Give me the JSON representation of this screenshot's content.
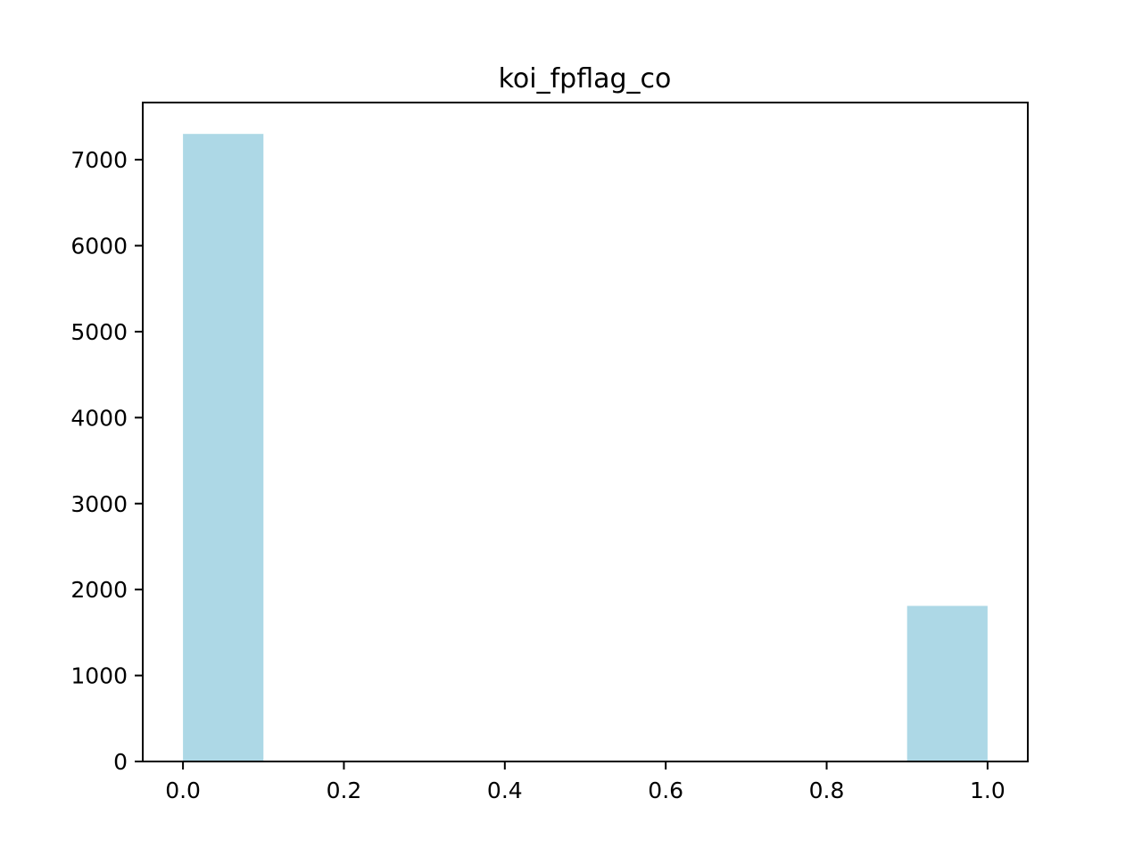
{
  "chart_data": {
    "type": "bar",
    "title": "koi_fpflag_co",
    "xlabel": "",
    "ylabel": "",
    "bins": [
      {
        "x0": 0.0,
        "x1": 0.1,
        "count": 7300
      },
      {
        "x0": 0.1,
        "x1": 0.2,
        "count": 0
      },
      {
        "x0": 0.2,
        "x1": 0.3,
        "count": 0
      },
      {
        "x0": 0.3,
        "x1": 0.4,
        "count": 0
      },
      {
        "x0": 0.4,
        "x1": 0.5,
        "count": 0
      },
      {
        "x0": 0.5,
        "x1": 0.6,
        "count": 0
      },
      {
        "x0": 0.6,
        "x1": 0.7,
        "count": 0
      },
      {
        "x0": 0.7,
        "x1": 0.8,
        "count": 0
      },
      {
        "x0": 0.8,
        "x1": 0.9,
        "count": 0
      },
      {
        "x0": 0.9,
        "x1": 1.0,
        "count": 1810
      }
    ],
    "xlim": [
      -0.05,
      1.05
    ],
    "ylim": [
      0,
      7665
    ],
    "xticks": [
      0.0,
      0.2,
      0.4,
      0.6,
      0.8,
      1.0
    ],
    "xtick_labels": [
      "0.0",
      "0.2",
      "0.4",
      "0.6",
      "0.8",
      "1.0"
    ],
    "yticks": [
      0,
      1000,
      2000,
      3000,
      4000,
      5000,
      6000,
      7000
    ],
    "ytick_labels": [
      "0",
      "1000",
      "2000",
      "3000",
      "4000",
      "5000",
      "6000",
      "7000"
    ],
    "bar_color": "#add8e6",
    "grid": false,
    "legend": "none"
  }
}
